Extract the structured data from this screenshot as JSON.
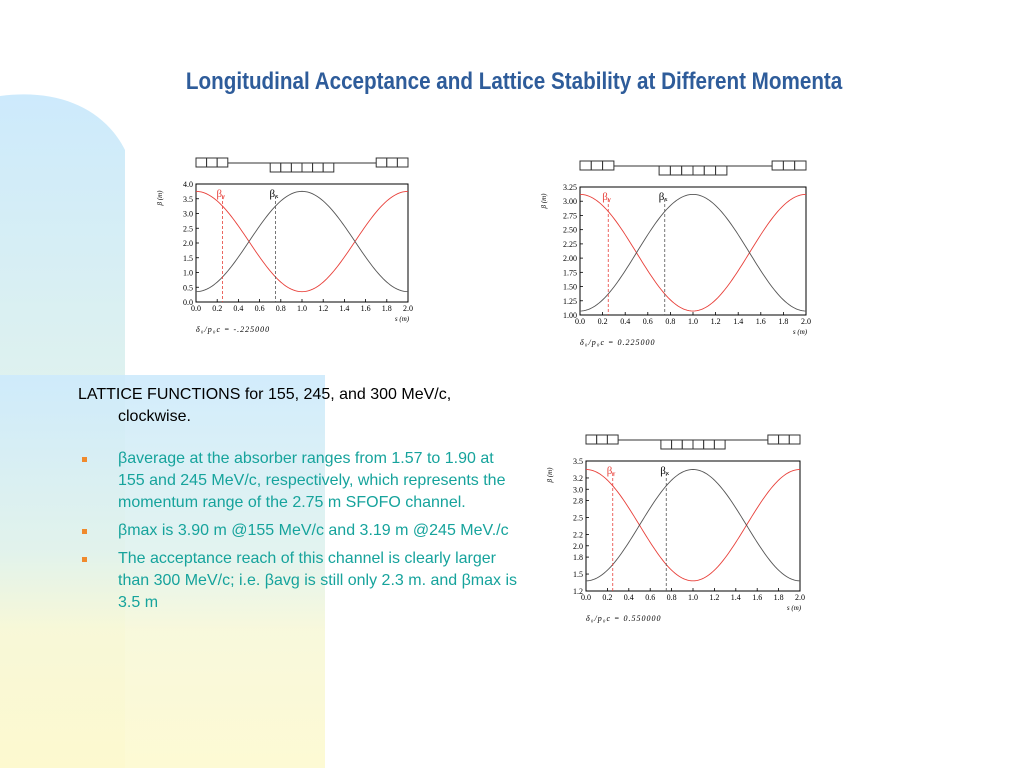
{
  "slide": {
    "title": "Longitudinal Acceptance and Lattice Stability at Different Momenta",
    "intro": "LATTICE FUNCTIONS for 155, 245, and 300 MeV/c, clockwise.",
    "bullets": [
      "βaverage at the absorber ranges from 1.57 to 1.90 at 155 and 245 MeV/c, respectively, which represents the momentum range of the 2.75 m SFOFO channel.",
      "βmax is  3.90 m @155 MeV/c and 3.19 m @245 MeV./c",
      "The acceptance reach of this channel is clearly larger than 300 MeV/c;  i.e. βavg is still only 2.3 m. and βmax is 3.5 m"
    ]
  },
  "colors": {
    "title": "#2e5c9a",
    "bullet_text": "#16a39c",
    "bullet_mark": "#f08a2c",
    "beta_y": "#e8403a",
    "beta_x": "#555555",
    "deco_blue": "#cdeafc",
    "deco_yellow": "#fdf9cf"
  },
  "chart_data": [
    {
      "type": "line",
      "momentum": "155 MeV/c",
      "xlabel": "s (m)",
      "ylabel": "β (m)",
      "xlim": [
        0.0,
        2.0
      ],
      "ylim": [
        0.0,
        4.0
      ],
      "xticks": [
        "0.0",
        "0.2",
        "0.4",
        "0.6",
        "0.8",
        "1.0",
        "1.2",
        "1.4",
        "1.6",
        "1.8",
        "2.0"
      ],
      "yticks": [
        "0.0",
        "0.5",
        "1.0",
        "1.5",
        "2.0",
        "2.5",
        "3.0",
        "3.5",
        "4.0"
      ],
      "footer": "δ₀/p₀c = -.225000",
      "markers": {
        "beta_y_at": 0.25,
        "beta_x_at": 0.75
      },
      "series": [
        {
          "name": "βᵧ",
          "x": [
            0.0,
            0.25,
            0.5,
            0.75,
            1.0,
            1.25,
            1.5,
            1.75,
            2.0
          ],
          "values": [
            3.75,
            3.3,
            2.1,
            0.95,
            0.35,
            0.95,
            2.1,
            3.3,
            3.75
          ]
        },
        {
          "name": "βₓ",
          "x": [
            0.0,
            0.25,
            0.5,
            0.75,
            1.0,
            1.25,
            1.5,
            1.75,
            2.0
          ],
          "values": [
            0.35,
            0.95,
            2.1,
            3.3,
            3.75,
            3.3,
            2.1,
            0.95,
            0.35
          ]
        }
      ]
    },
    {
      "type": "line",
      "momentum": "245 MeV/c",
      "xlabel": "s (m)",
      "ylabel": "β (m)",
      "xlim": [
        0.0,
        2.0
      ],
      "ylim": [
        1.0,
        3.25
      ],
      "xticks": [
        "0.0",
        "0.2",
        "0.4",
        "0.6",
        "0.8",
        "1.0",
        "1.2",
        "1.4",
        "1.6",
        "1.8",
        "2.0"
      ],
      "yticks": [
        "1.00",
        "1.25",
        "1.50",
        "1.75",
        "2.00",
        "2.25",
        "2.50",
        "2.75",
        "3.00",
        "3.25"
      ],
      "footer": "δ₀/p₀c = 0.225000",
      "markers": {
        "beta_y_at": 0.25,
        "beta_x_at": 0.75
      },
      "series": [
        {
          "name": "βᵧ",
          "x": [
            0.0,
            0.25,
            0.5,
            0.75,
            1.0,
            1.25,
            1.5,
            1.75,
            2.0
          ],
          "values": [
            3.12,
            2.9,
            2.2,
            1.48,
            1.07,
            1.48,
            2.2,
            2.9,
            3.12
          ]
        },
        {
          "name": "βₓ",
          "x": [
            0.0,
            0.25,
            0.5,
            0.75,
            1.0,
            1.25,
            1.5,
            1.75,
            2.0
          ],
          "values": [
            1.07,
            1.48,
            2.2,
            2.9,
            3.12,
            2.9,
            2.2,
            1.48,
            1.07
          ]
        }
      ]
    },
    {
      "type": "line",
      "momentum": "300 MeV/c",
      "xlabel": "s (m)",
      "ylabel": "β (m)",
      "xlim": [
        0.0,
        2.0
      ],
      "ylim": [
        1.2,
        3.5
      ],
      "xticks": [
        "0.0",
        "0.2",
        "0.4",
        "0.6",
        "0.8",
        "1.0",
        "1.2",
        "1.4",
        "1.6",
        "1.8",
        "2.0"
      ],
      "yticks": [
        "1.2",
        "1.5",
        "1.8",
        "2.0",
        "2.2",
        "2.5",
        "2.8",
        "3.0",
        "3.2",
        "3.5"
      ],
      "footer": "δ₀/p₀c = 0.550000",
      "markers": {
        "beta_y_at": 0.25,
        "beta_x_at": 0.75
      },
      "series": [
        {
          "name": "βᵧ",
          "x": [
            0.0,
            0.25,
            0.5,
            0.75,
            1.0,
            1.25,
            1.5,
            1.75,
            2.0
          ],
          "values": [
            3.35,
            3.1,
            2.4,
            1.75,
            1.38,
            1.75,
            2.4,
            3.1,
            3.35
          ]
        },
        {
          "name": "βₓ",
          "x": [
            0.0,
            0.25,
            0.5,
            0.75,
            1.0,
            1.25,
            1.5,
            1.75,
            2.0
          ],
          "values": [
            1.38,
            1.75,
            2.4,
            3.1,
            3.35,
            3.1,
            2.4,
            1.75,
            1.38
          ]
        }
      ]
    }
  ]
}
